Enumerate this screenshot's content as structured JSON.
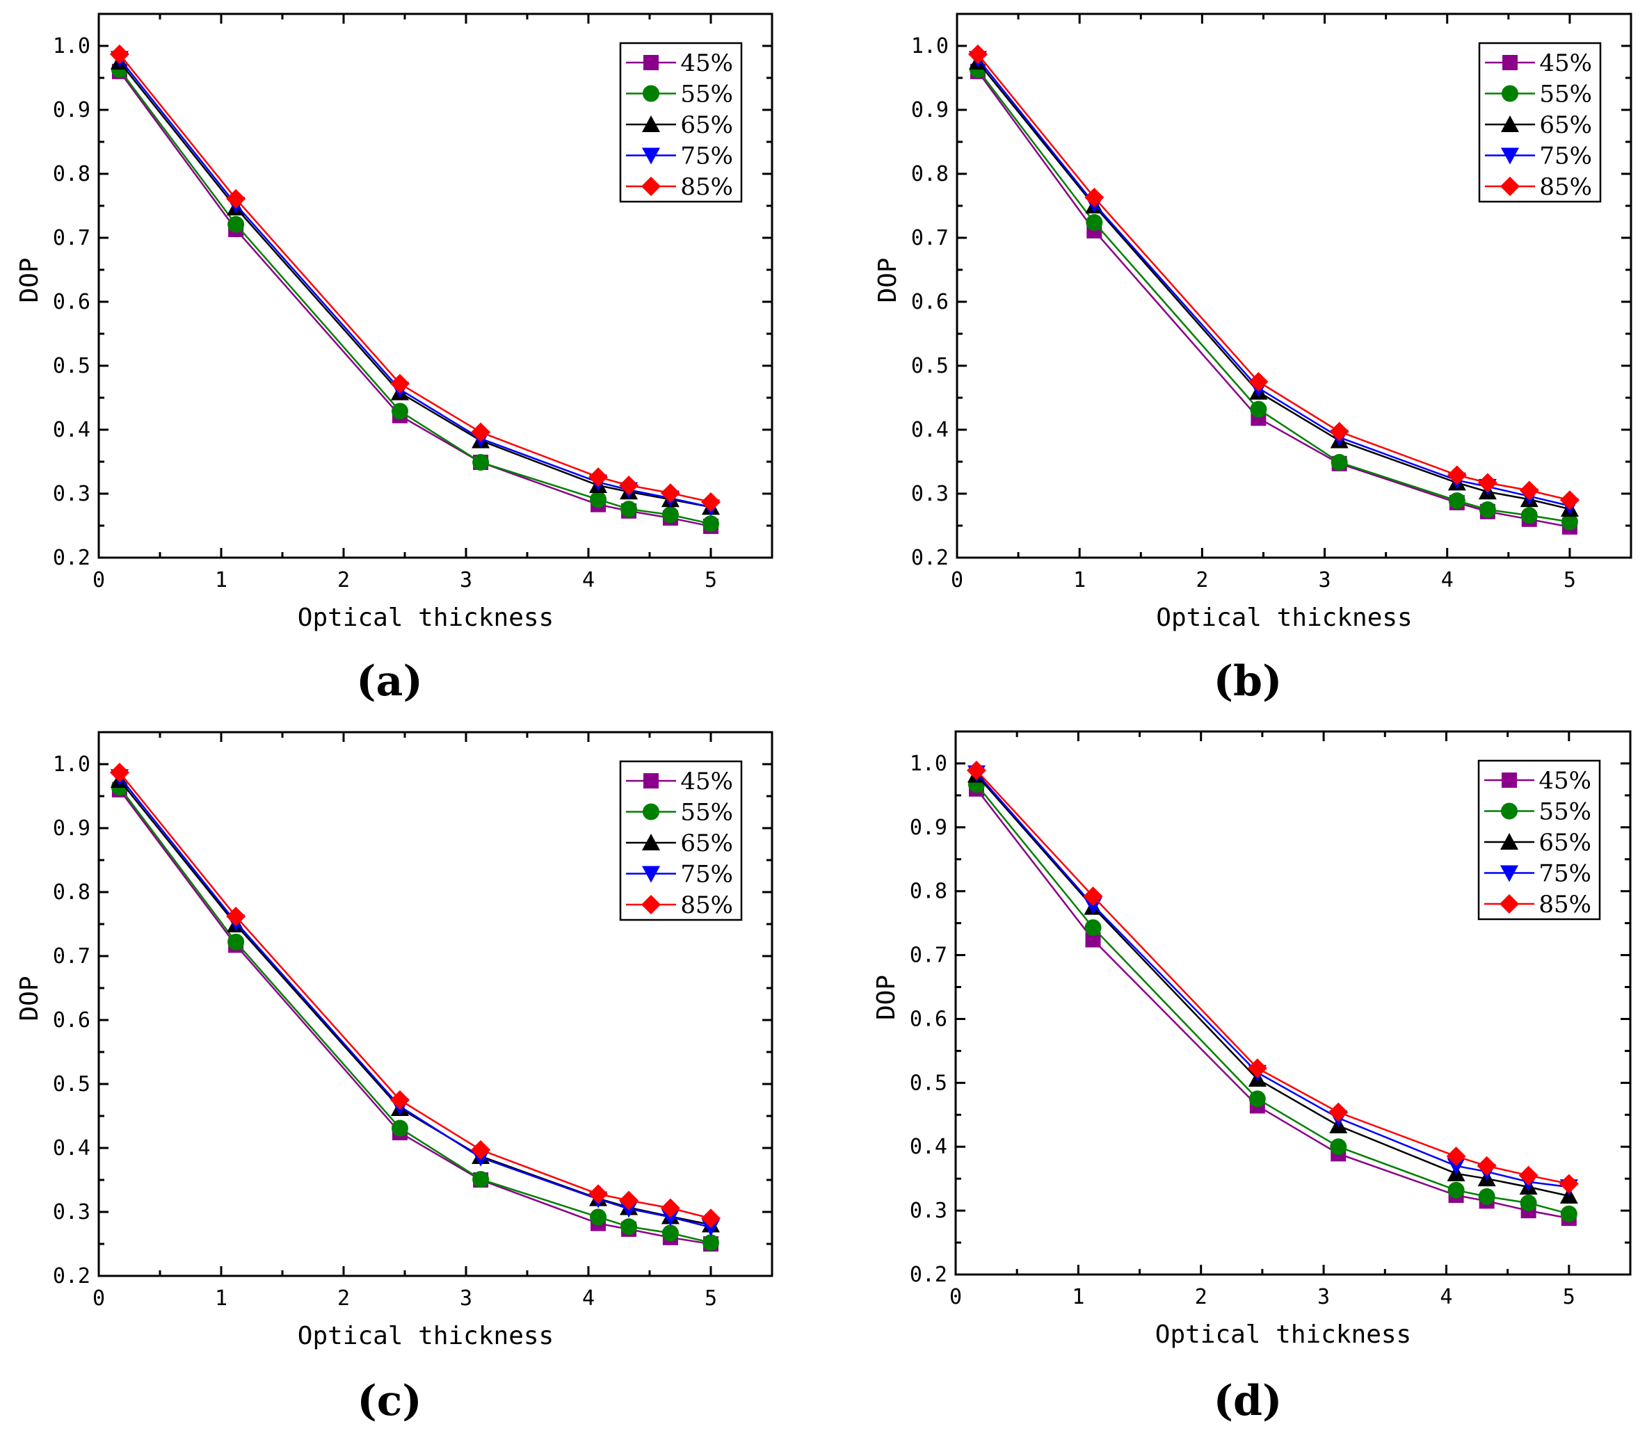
{
  "figure": {
    "colors": {
      "45%": "#8b008b",
      "55%": "#008000",
      "65%": "#000000",
      "75%": "#0000ff",
      "85%": "#ff0000"
    },
    "markers": {
      "45%": "square",
      "55%": "circle",
      "65%": "triangle-up",
      "75%": "triangle-down",
      "85%": "diamond"
    }
  },
  "chart_data": [
    {
      "type": "line",
      "panel_label": "(a)",
      "xlabel": "Optical thickness",
      "ylabel": "DOP",
      "xlim": [
        0,
        5.5
      ],
      "ylim": [
        0.2,
        1.05
      ],
      "xticks": [
        "0",
        "1",
        "2",
        "3",
        "4",
        "5"
      ],
      "yticks": [
        "0.2",
        "0.3",
        "0.4",
        "0.5",
        "0.6",
        "0.7",
        "0.8",
        "0.9",
        "1.0"
      ],
      "legend": {
        "position": "top-right",
        "entries": [
          "45%",
          "55%",
          "65%",
          "75%",
          "85%"
        ]
      },
      "x": [
        0.17,
        1.12,
        2.46,
        3.12,
        4.08,
        4.33,
        4.67,
        5.0
      ],
      "series": [
        {
          "name": "45%",
          "values": [
            0.96,
            0.713,
            0.422,
            0.349,
            0.283,
            0.273,
            0.262,
            0.249
          ]
        },
        {
          "name": "55%",
          "values": [
            0.963,
            0.721,
            0.429,
            0.349,
            0.291,
            0.276,
            0.267,
            0.253
          ]
        },
        {
          "name": "65%",
          "values": [
            0.975,
            0.747,
            0.458,
            0.383,
            0.313,
            0.303,
            0.291,
            0.279
          ]
        },
        {
          "name": "75%",
          "values": [
            0.98,
            0.752,
            0.463,
            0.386,
            0.318,
            0.306,
            0.293,
            0.279
          ]
        },
        {
          "name": "85%",
          "values": [
            0.987,
            0.761,
            0.472,
            0.396,
            0.326,
            0.313,
            0.301,
            0.287
          ]
        }
      ]
    },
    {
      "type": "line",
      "panel_label": "(b)",
      "xlabel": "Optical thickness",
      "ylabel": "DOP",
      "xlim": [
        0,
        5.5
      ],
      "ylim": [
        0.2,
        1.05
      ],
      "xticks": [
        "0",
        "1",
        "2",
        "3",
        "4",
        "5"
      ],
      "yticks": [
        "0.2",
        "0.3",
        "0.4",
        "0.5",
        "0.6",
        "0.7",
        "0.8",
        "0.9",
        "1.0"
      ],
      "legend": {
        "position": "top-right",
        "entries": [
          "45%",
          "55%",
          "65%",
          "75%",
          "85%"
        ]
      },
      "x": [
        0.17,
        1.12,
        2.46,
        3.12,
        4.08,
        4.33,
        4.67,
        5.0
      ],
      "series": [
        {
          "name": "45%",
          "values": [
            0.96,
            0.711,
            0.418,
            0.347,
            0.286,
            0.272,
            0.26,
            0.248
          ]
        },
        {
          "name": "55%",
          "values": [
            0.963,
            0.724,
            0.432,
            0.349,
            0.289,
            0.275,
            0.266,
            0.256
          ]
        },
        {
          "name": "65%",
          "values": [
            0.975,
            0.75,
            0.459,
            0.383,
            0.317,
            0.303,
            0.291,
            0.276
          ]
        },
        {
          "name": "75%",
          "values": [
            0.98,
            0.753,
            0.465,
            0.388,
            0.321,
            0.311,
            0.296,
            0.281
          ]
        },
        {
          "name": "85%",
          "values": [
            0.987,
            0.763,
            0.475,
            0.397,
            0.329,
            0.317,
            0.305,
            0.29
          ]
        }
      ]
    },
    {
      "type": "line",
      "panel_label": "(c)",
      "xlabel": "Optical thickness",
      "ylabel": "DOP",
      "xlim": [
        0,
        5.5
      ],
      "ylim": [
        0.2,
        1.05
      ],
      "xticks": [
        "0",
        "1",
        "2",
        "3",
        "4",
        "5"
      ],
      "yticks": [
        "0.2",
        "0.3",
        "0.4",
        "0.5",
        "0.6",
        "0.7",
        "0.8",
        "0.9",
        "1.0"
      ],
      "legend": {
        "position": "top-right",
        "entries": [
          "45%",
          "55%",
          "65%",
          "75%",
          "85%"
        ]
      },
      "x": [
        0.17,
        1.12,
        2.46,
        3.12,
        4.08,
        4.33,
        4.67,
        5.0
      ],
      "series": [
        {
          "name": "45%",
          "values": [
            0.96,
            0.717,
            0.424,
            0.35,
            0.282,
            0.273,
            0.26,
            0.25
          ]
        },
        {
          "name": "55%",
          "values": [
            0.964,
            0.722,
            0.431,
            0.351,
            0.292,
            0.277,
            0.267,
            0.252
          ]
        },
        {
          "name": "65%",
          "values": [
            0.975,
            0.749,
            0.462,
            0.387,
            0.321,
            0.307,
            0.293,
            0.28
          ]
        },
        {
          "name": "75%",
          "values": [
            0.98,
            0.753,
            0.465,
            0.385,
            0.32,
            0.305,
            0.292,
            0.276
          ]
        },
        {
          "name": "85%",
          "values": [
            0.987,
            0.762,
            0.475,
            0.397,
            0.328,
            0.318,
            0.306,
            0.29
          ]
        }
      ]
    },
    {
      "type": "line",
      "panel_label": "(d)",
      "xlabel": "Optical thickness",
      "ylabel": "DOP",
      "xlim": [
        0,
        5.5
      ],
      "ylim": [
        0.2,
        1.05
      ],
      "xticks": [
        "0",
        "1",
        "2",
        "3",
        "4",
        "5"
      ],
      "yticks": [
        "0.2",
        "0.3",
        "0.4",
        "0.5",
        "0.6",
        "0.7",
        "0.8",
        "0.9",
        "1.0"
      ],
      "legend": {
        "position": "top-right",
        "entries": [
          "45%",
          "55%",
          "65%",
          "75%",
          "85%"
        ]
      },
      "x": [
        0.17,
        1.12,
        2.46,
        3.12,
        4.08,
        4.33,
        4.67,
        5.0
      ],
      "series": [
        {
          "name": "45%",
          "values": [
            0.96,
            0.724,
            0.464,
            0.389,
            0.324,
            0.315,
            0.3,
            0.288
          ]
        },
        {
          "name": "55%",
          "values": [
            0.967,
            0.743,
            0.475,
            0.4,
            0.332,
            0.322,
            0.312,
            0.295
          ]
        },
        {
          "name": "65%",
          "values": [
            0.982,
            0.775,
            0.506,
            0.433,
            0.358,
            0.35,
            0.337,
            0.323
          ]
        },
        {
          "name": "75%",
          "values": [
            0.985,
            0.778,
            0.516,
            0.445,
            0.37,
            0.361,
            0.345,
            0.337
          ]
        },
        {
          "name": "85%",
          "values": [
            0.989,
            0.792,
            0.523,
            0.454,
            0.385,
            0.37,
            0.355,
            0.342
          ]
        }
      ]
    }
  ]
}
